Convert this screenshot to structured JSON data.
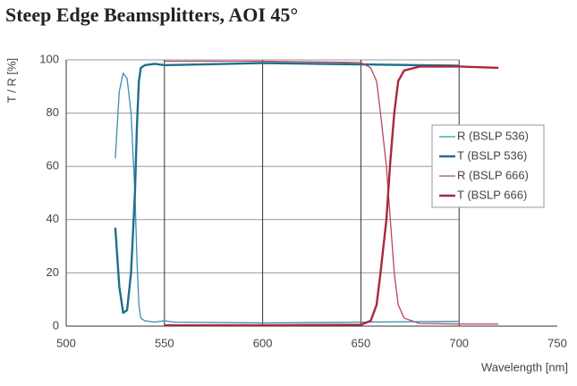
{
  "chart_data": {
    "type": "line",
    "title": "Steep Edge Beamsplitters, AOI 45°",
    "x_label": "Wavelength [nm]",
    "y_label": "T / R [%]",
    "xlim": [
      500,
      750
    ],
    "xticks": [
      500,
      550,
      600,
      650,
      700,
      750
    ],
    "ylim": [
      0,
      100
    ],
    "yticks": [
      0,
      20,
      40,
      60,
      80,
      100
    ],
    "grid": true,
    "legend": "right",
    "series": [
      {
        "name": "R (BSLP 536)",
        "color": "#3a8fae",
        "width": 1.3,
        "x": [
          525,
          527,
          529,
          531,
          533,
          535,
          536,
          537,
          538,
          540,
          545,
          550,
          555,
          600,
          650,
          700
        ],
        "values": [
          63,
          88,
          95,
          93,
          80,
          50,
          25,
          8,
          3,
          2,
          1.5,
          2,
          1.5,
          1.2,
          1.5,
          1.8
        ]
      },
      {
        "name": "T (BSLP 536)",
        "color": "#1f6f8b",
        "width": 2.4,
        "x": [
          525,
          527,
          529,
          531,
          533,
          535,
          536,
          537,
          538,
          540,
          545,
          550,
          600,
          650,
          700
        ],
        "values": [
          37,
          15,
          5,
          6,
          20,
          50,
          75,
          92,
          97,
          98,
          98.5,
          98,
          98.8,
          98.3,
          97.8
        ]
      },
      {
        "name": "R (BSLP 666)",
        "color": "#b8465f",
        "width": 1.3,
        "x": [
          550,
          600,
          650,
          655,
          658,
          660,
          663,
          665,
          667,
          669,
          672,
          680,
          700,
          720
        ],
        "values": [
          99.5,
          99.5,
          99,
          97,
          92,
          80,
          60,
          40,
          20,
          8,
          3,
          1,
          0.8,
          0.8
        ]
      },
      {
        "name": "T (BSLP 666)",
        "color": "#a8283f",
        "width": 2.4,
        "x": [
          550,
          600,
          650,
          655,
          658,
          660,
          663,
          665,
          667,
          669,
          672,
          680,
          700,
          720
        ],
        "values": [
          0.3,
          0.3,
          0.5,
          2,
          8,
          20,
          40,
          62,
          80,
          92,
          96,
          97.5,
          97.5,
          97
        ]
      }
    ]
  }
}
